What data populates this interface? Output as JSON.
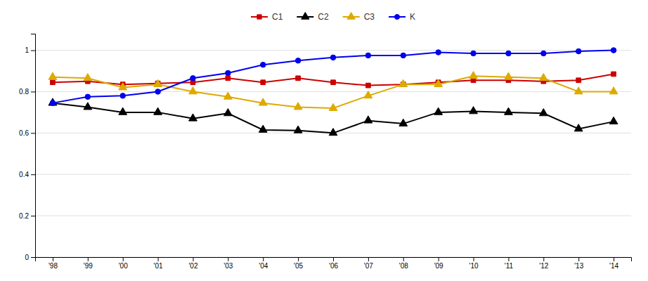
{
  "chart_data": {
    "type": "line",
    "categories": [
      "'98",
      "'99",
      "'00",
      "'01",
      "'02",
      "'03",
      "'04",
      "'05",
      "'06",
      "'07",
      "'08",
      "'09",
      "'10",
      "'11",
      "'12",
      "'13",
      "'14"
    ],
    "series": [
      {
        "name": "C1",
        "color": "#cc0000",
        "marker": "square",
        "values": [
          0.845,
          0.85,
          0.835,
          0.84,
          0.845,
          0.865,
          0.845,
          0.865,
          0.845,
          0.83,
          0.835,
          0.845,
          0.855,
          0.855,
          0.85,
          0.855,
          0.885
        ]
      },
      {
        "name": "C2",
        "color": "#000000",
        "marker": "triangle",
        "values": [
          0.745,
          0.725,
          0.7,
          0.7,
          0.67,
          0.695,
          0.615,
          0.612,
          0.6,
          0.66,
          0.645,
          0.7,
          0.705,
          0.7,
          0.695,
          0.62,
          0.655
        ]
      },
      {
        "name": "C3",
        "color": "#ddaa00",
        "marker": "triangle",
        "values": [
          0.87,
          0.865,
          0.82,
          0.835,
          0.8,
          0.775,
          0.745,
          0.725,
          0.72,
          0.78,
          0.835,
          0.835,
          0.875,
          0.87,
          0.865,
          0.8,
          0.8
        ]
      },
      {
        "name": "K",
        "color": "#0000ee",
        "marker": "circle",
        "values": [
          0.745,
          0.775,
          0.78,
          0.8,
          0.865,
          0.89,
          0.93,
          0.95,
          0.965,
          0.975,
          0.975,
          0.99,
          0.985,
          0.985,
          0.985,
          0.995,
          1.0
        ]
      }
    ],
    "ylim": [
      0,
      1.08
    ],
    "yticks": [
      0,
      0.2,
      0.4,
      0.6,
      0.8,
      1.0
    ],
    "grid": true,
    "legend": "top"
  }
}
